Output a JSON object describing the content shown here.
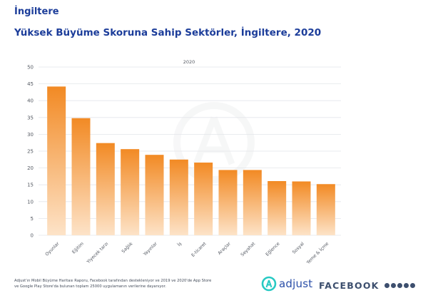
{
  "header": {
    "title": "İngiltere",
    "subtitle": "Yüksek Büyüme Skoruna Sahip Sektörler, İngiltere, 2020"
  },
  "chart_data": {
    "type": "bar",
    "series_label": "2020",
    "categories": [
      "Oyunlar",
      "Eğitim",
      "Yiyecek tarzı",
      "Sağlık",
      "Yayınlar",
      "İş",
      "E-ticaret",
      "Araçlar",
      "Seyahat",
      "Eğlence",
      "Sosyal",
      "Yeme & İçme"
    ],
    "values": [
      44.2,
      34.8,
      27.4,
      25.6,
      23.9,
      22.5,
      21.6,
      19.4,
      19.4,
      16.1,
      16.0,
      15.2
    ],
    "ylim": [
      0,
      50
    ],
    "yticks": [
      0,
      5,
      10,
      15,
      20,
      25,
      30,
      35,
      40,
      45,
      50
    ],
    "grid": true,
    "colors": {
      "bar_top": "#f28a24",
      "bar_bottom": "#fde3c8",
      "grid": "#e3e5ea",
      "axis_text": "#555a63"
    }
  },
  "footer": {
    "note": "Adjust'ın Mobil Büyüme Haritası Raporu, Facebook tarafından destekleniyor ve 2019 ve 2020'de App Store ve Google Play Store'da bulunan toplam 25000 uygulamanın verilerine dayanıyor.",
    "brand_adjust": "adjust",
    "brand_facebook": "FACEBOOK",
    "social_icons": [
      "facebook-icon",
      "messenger-icon",
      "instagram-icon",
      "whatsapp-icon",
      "oculus-icon"
    ]
  }
}
